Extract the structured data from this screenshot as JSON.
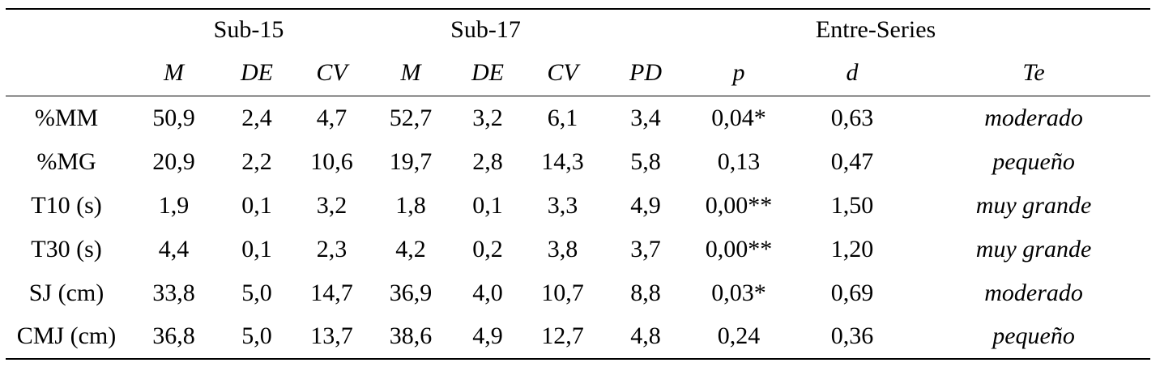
{
  "table": {
    "group_headers": [
      {
        "label": ""
      },
      {
        "label": "Sub-15"
      },
      {
        "label": "Sub-17"
      },
      {
        "label": "Entre-Series"
      }
    ],
    "columns": [
      "",
      "M",
      "DE",
      "CV",
      "M",
      "DE",
      "CV",
      "PD",
      "p",
      "d",
      "Te"
    ],
    "rows": [
      {
        "label": "%MM",
        "values": [
          "50,9",
          "2,4",
          "4,7",
          "52,7",
          "3,2",
          "6,1",
          "3,4",
          "0,04*",
          "0,63",
          "moderado"
        ]
      },
      {
        "label": "%MG",
        "values": [
          "20,9",
          "2,2",
          "10,6",
          "19,7",
          "2,8",
          "14,3",
          "5,8",
          "0,13",
          "0,47",
          "pequeño"
        ]
      },
      {
        "label": "T10 (s)",
        "values": [
          "1,9",
          "0,1",
          "3,2",
          "1,8",
          "0,1",
          "3,3",
          "4,9",
          "0,00**",
          "1,50",
          "muy grande"
        ]
      },
      {
        "label": "T30 (s)",
        "values": [
          "4,4",
          "0,1",
          "2,3",
          "4,2",
          "0,2",
          "3,8",
          "3,7",
          "0,00**",
          "1,20",
          "muy grande"
        ]
      },
      {
        "label": "SJ (cm)",
        "values": [
          "33,8",
          "5,0",
          "14,7",
          "36,9",
          "4,0",
          "10,7",
          "8,8",
          "0,03*",
          "0,69",
          "moderado"
        ]
      },
      {
        "label": "CMJ (cm)",
        "values": [
          "36,8",
          "5,0",
          "13,7",
          "38,6",
          "4,9",
          "12,7",
          "4,8",
          "0,24",
          "0,36",
          "pequeño"
        ]
      }
    ],
    "colors": {
      "text": "#000000",
      "background": "#ffffff",
      "rule": "#000000"
    }
  }
}
